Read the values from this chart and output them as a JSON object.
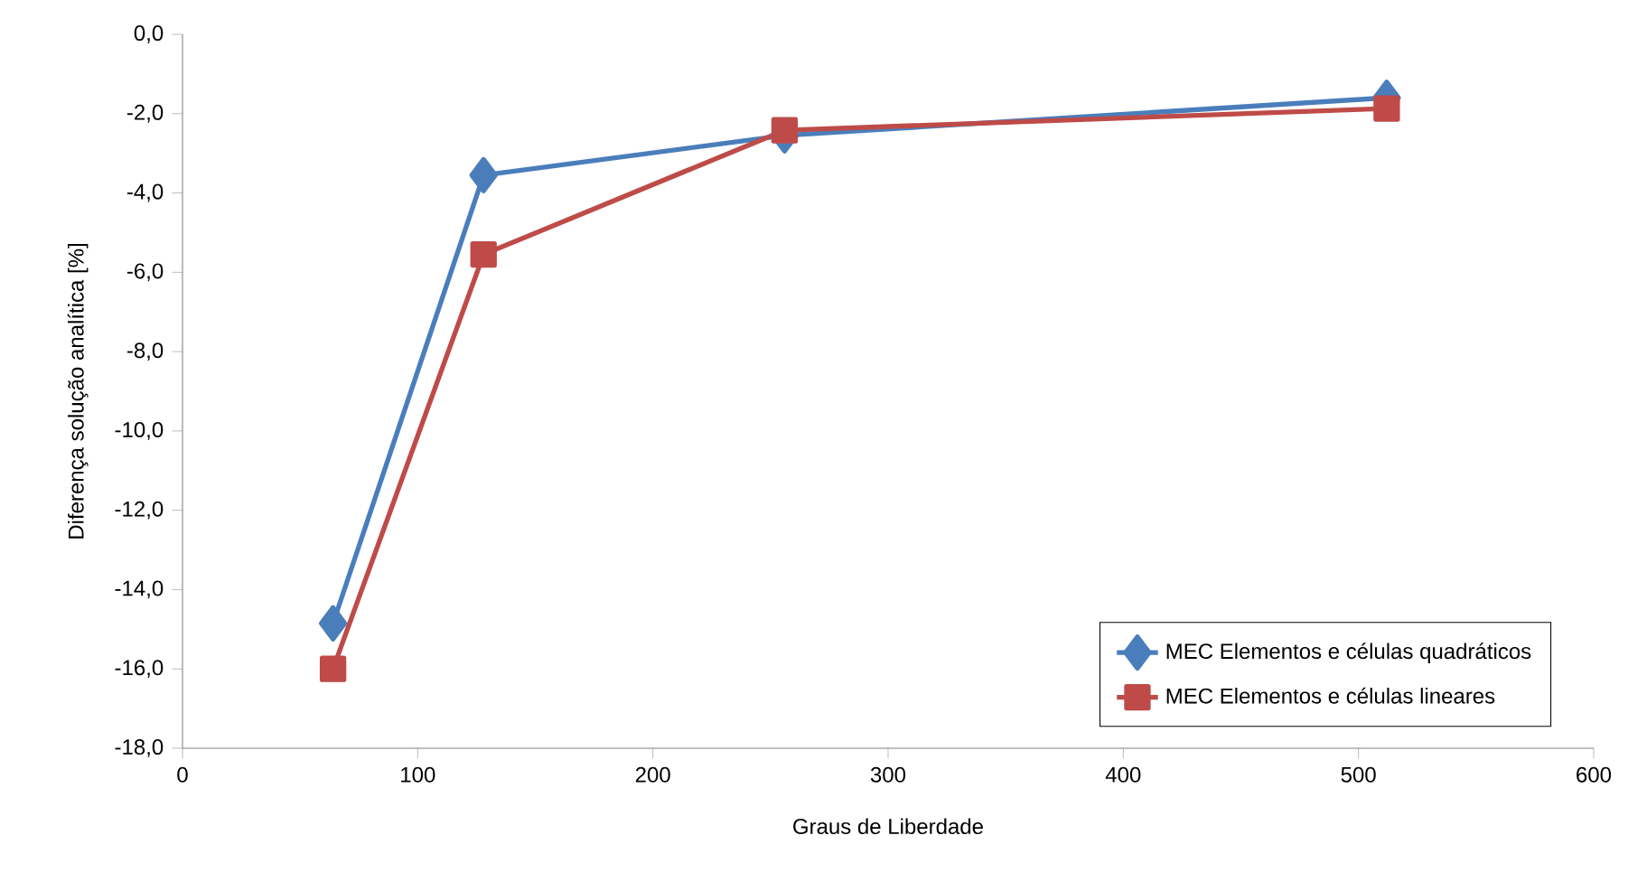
{
  "chart_data": {
    "type": "line",
    "xlabel": "Graus de Liberdade",
    "ylabel": "Diferença solução analítica [%]",
    "xlim": [
      0,
      600
    ],
    "xticks": [
      0,
      100,
      200,
      300,
      400,
      500,
      600
    ],
    "ylim": [
      -18,
      0
    ],
    "yticks": [
      {
        "value": 0,
        "label": "0,0"
      },
      {
        "value": -2,
        "label": "-2,0"
      },
      {
        "value": -4,
        "label": "-4,0"
      },
      {
        "value": -6,
        "label": "-6,0"
      },
      {
        "value": -8,
        "label": "-8,0"
      },
      {
        "value": -10,
        "label": "-10,0"
      },
      {
        "value": -12,
        "label": "-12,0"
      },
      {
        "value": -14,
        "label": "-14,0"
      },
      {
        "value": -16,
        "label": "-16,0"
      },
      {
        "value": -18,
        "label": "-18,0"
      }
    ],
    "grid": false,
    "legend": "bottom right",
    "line_style": "solid",
    "x": [
      64,
      128,
      256,
      512
    ],
    "series": [
      {
        "name": "MEC Elementos e células quadráticos",
        "color": "#4a7ebb",
        "marker": "diamond",
        "values": [
          -14.85,
          -3.55,
          -2.55,
          -1.6
        ]
      },
      {
        "name": "MEC Elementos e células lineares",
        "color": "#be4b48",
        "marker": "square",
        "values": [
          -16.0,
          -5.55,
          -2.42,
          -1.87
        ]
      }
    ]
  }
}
